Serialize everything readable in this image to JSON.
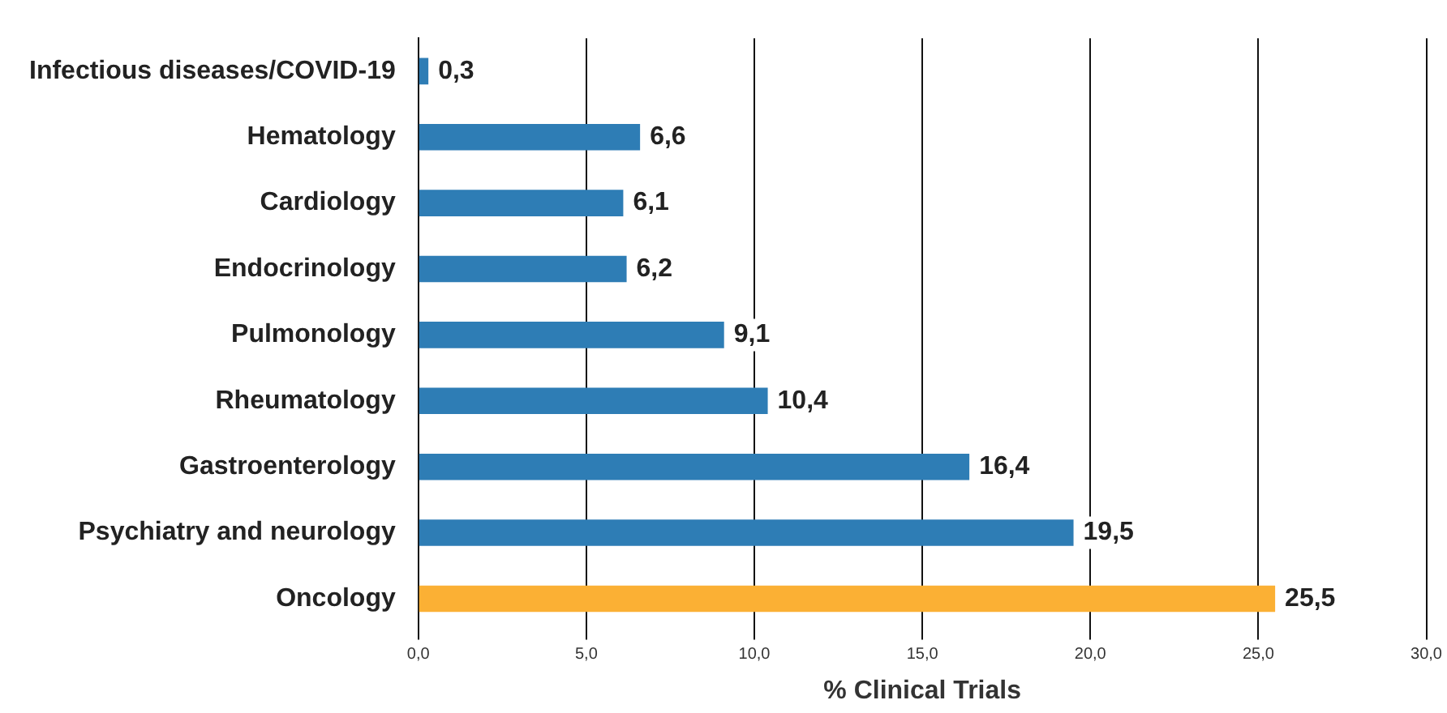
{
  "chart_data": {
    "type": "bar",
    "orientation": "horizontal",
    "xlabel": "% Clinical Trials",
    "categories": [
      "Infectious diseases/COVID-19",
      "Hematology",
      "Cardiology",
      "Endocrinology",
      "Pulmonology",
      "Rheumatology",
      "Gastroenterology",
      "Psychiatry and neurology",
      "Oncology"
    ],
    "values": [
      0.3,
      6.6,
      6.1,
      6.2,
      9.1,
      10.4,
      16.4,
      19.5,
      25.5
    ],
    "value_labels": [
      "0,3",
      "6,6",
      "6,1",
      "6,2",
      "9,1",
      "10,4",
      "16,4",
      "19,5",
      "25,5"
    ],
    "colors": [
      "#2e7db5",
      "#2e7db5",
      "#2e7db5",
      "#2e7db5",
      "#2e7db5",
      "#2e7db5",
      "#2e7db5",
      "#2e7db5",
      "#fbb034"
    ],
    "xlim": [
      0,
      30
    ],
    "xticks": [
      {
        "value": 0,
        "label": "0,0"
      },
      {
        "value": 5,
        "label": "5,0"
      },
      {
        "value": 10,
        "label": "10,0"
      },
      {
        "value": 15,
        "label": "15,0"
      },
      {
        "value": 20,
        "label": "20,0"
      },
      {
        "value": 25,
        "label": "25,0"
      },
      {
        "value": 30,
        "label": "30,0"
      }
    ],
    "grid": "x",
    "legend": false
  }
}
